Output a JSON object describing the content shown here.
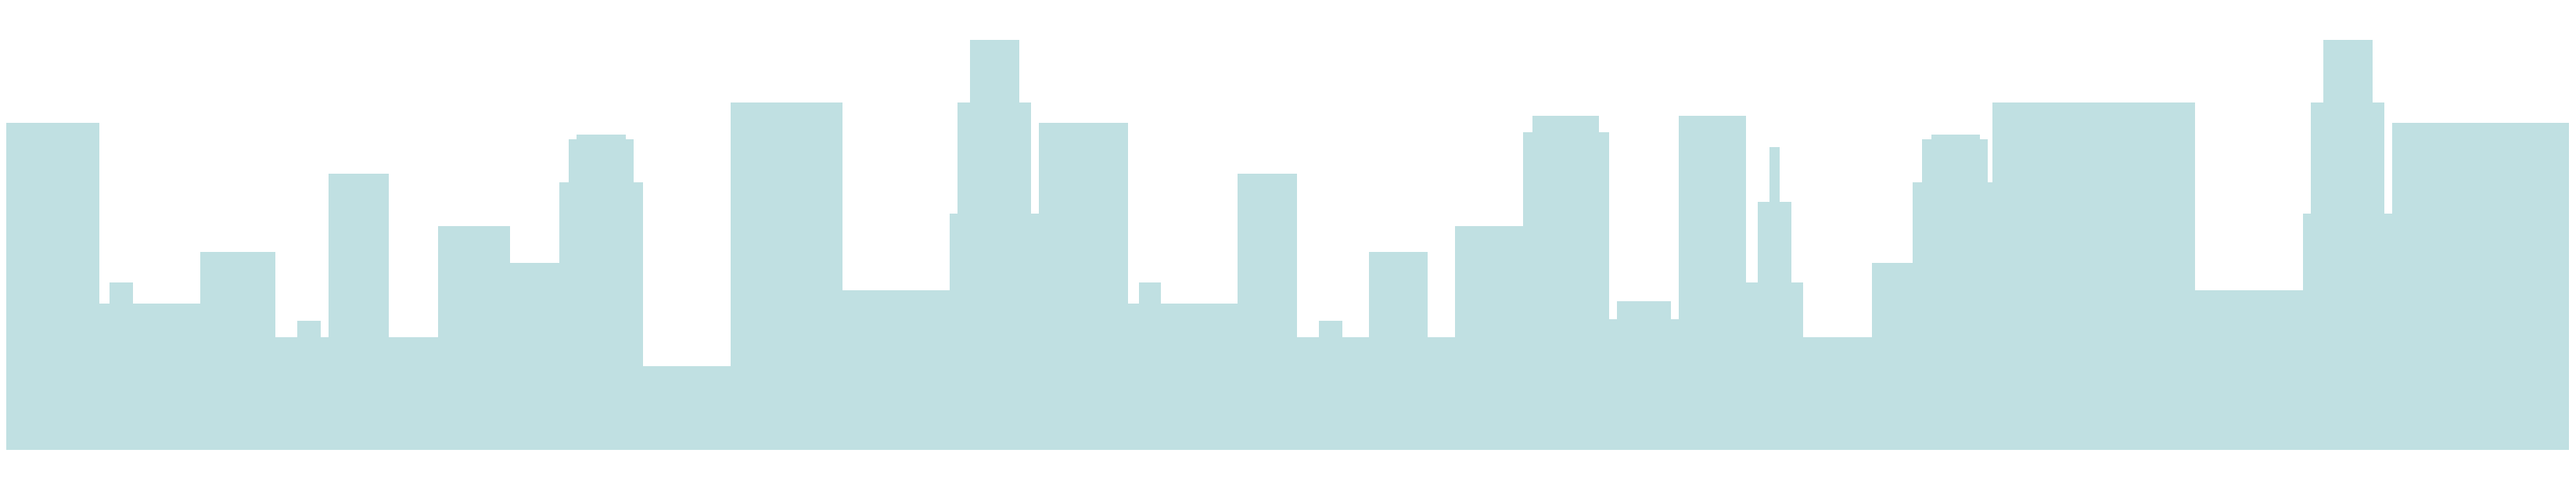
{
  "illustration": {
    "fill_color": "#c0e0e2",
    "background_color": "#ffffff"
  }
}
